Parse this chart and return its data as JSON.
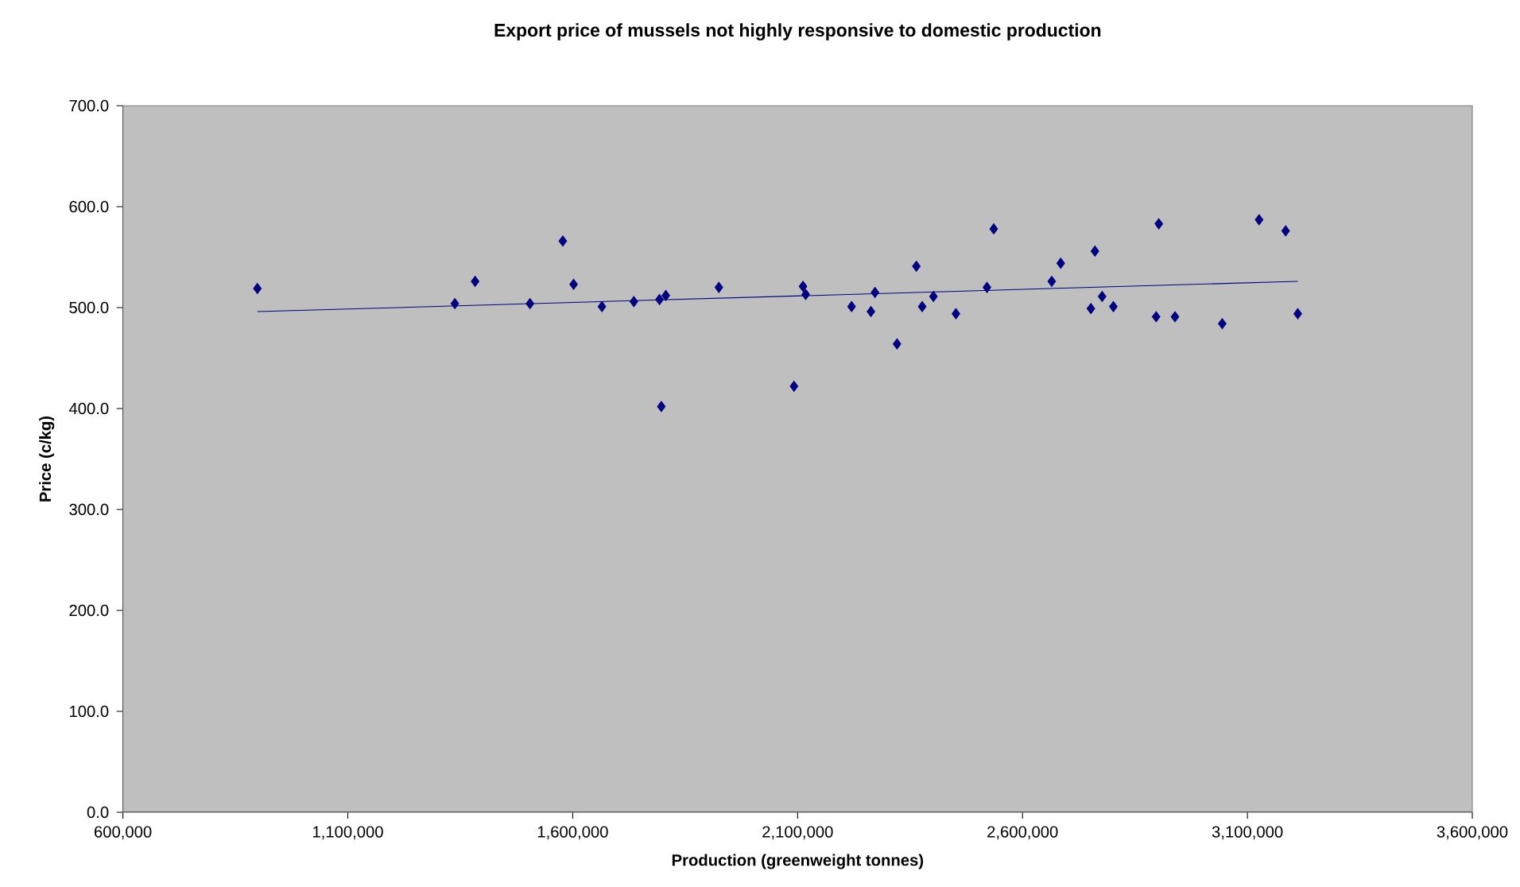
{
  "chart_data": {
    "type": "scatter",
    "title": "Export price of mussels not highly responsive to domestic production",
    "xlabel": "Production (greenweight tonnes)",
    "ylabel": "Price (c/kg)",
    "grid": false,
    "xlim": [
      600000,
      3600000
    ],
    "xticks": [
      {
        "value": 600000,
        "label": "600,000"
      },
      {
        "value": 1100000,
        "label": "1,100,000"
      },
      {
        "value": 1600000,
        "label": "1,600,000"
      },
      {
        "value": 2100000,
        "label": "2,100,000"
      },
      {
        "value": 2600000,
        "label": "2,600,000"
      },
      {
        "value": 3100000,
        "label": "3,100,000"
      },
      {
        "value": 3600000,
        "label": "3,600,000"
      }
    ],
    "ylim": [
      0,
      700
    ],
    "yticks": [
      {
        "value": 0,
        "label": "0.0"
      },
      {
        "value": 100,
        "label": "100.0"
      },
      {
        "value": 200,
        "label": "200.0"
      },
      {
        "value": 300,
        "label": "300.0"
      },
      {
        "value": 400,
        "label": "400.0"
      },
      {
        "value": 500,
        "label": "500.0"
      },
      {
        "value": 600,
        "label": "600.0"
      },
      {
        "value": 700,
        "label": "700.0"
      }
    ],
    "series": [
      {
        "marker": "diamond",
        "color": "#000080",
        "x": [
          899000,
          1338000,
          1383000,
          1505000,
          1578000,
          1602000,
          1665000,
          1736000,
          1793000,
          1807000,
          1797000,
          1925000,
          2092000,
          2112000,
          2118000,
          2220000,
          2263000,
          2272000,
          2321000,
          2364000,
          2377000,
          2402000,
          2452000,
          2521000,
          2536000,
          2665000,
          2685000,
          2752000,
          2761000,
          2777000,
          2802000,
          2903000,
          2897000,
          2939000,
          3044000,
          3126000,
          3185000,
          3212000
        ],
        "values": [
          519,
          504,
          526,
          504,
          566,
          523,
          501,
          506,
          508,
          512,
          402,
          520,
          422,
          521,
          513,
          501,
          496,
          515,
          464,
          541,
          501,
          511,
          494,
          520,
          578,
          526,
          544,
          499,
          556,
          511,
          501,
          583,
          491,
          491,
          484,
          587,
          576,
          494
        ]
      },
      {
        "type": "line",
        "marker": "none",
        "color": "#000080",
        "x": [
          899000,
          3212000
        ],
        "values": [
          496,
          526
        ]
      }
    ]
  }
}
